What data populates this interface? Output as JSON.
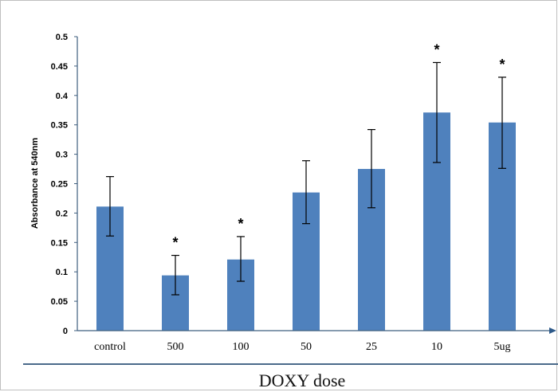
{
  "chart_data": {
    "type": "bar",
    "title": "",
    "xlabel": "DOXY dose",
    "ylabel": "Absorbance at 540nm",
    "categories": [
      "control",
      "500",
      "100",
      "50",
      "25",
      "10",
      "5ug"
    ],
    "values": [
      0.211,
      0.094,
      0.121,
      0.235,
      0.275,
      0.371,
      0.354
    ],
    "error_low": [
      0.161,
      0.061,
      0.084,
      0.182,
      0.209,
      0.286,
      0.276
    ],
    "error_high": [
      0.262,
      0.128,
      0.16,
      0.289,
      0.342,
      0.456,
      0.431
    ],
    "significance": [
      "",
      "*",
      "*",
      "",
      "",
      "*",
      "*"
    ],
    "ylim": [
      0,
      0.5
    ],
    "yticks": [
      "0",
      "0.05",
      "0.1",
      "0.15",
      "0.2",
      "0.25",
      "0.3",
      "0.35",
      "0.4",
      "0.45",
      "0.5"
    ],
    "grid": false,
    "legend": "none",
    "colors": {
      "bar": "#4f81bd",
      "axis": "#3f5f7f",
      "error": "#000000"
    }
  }
}
